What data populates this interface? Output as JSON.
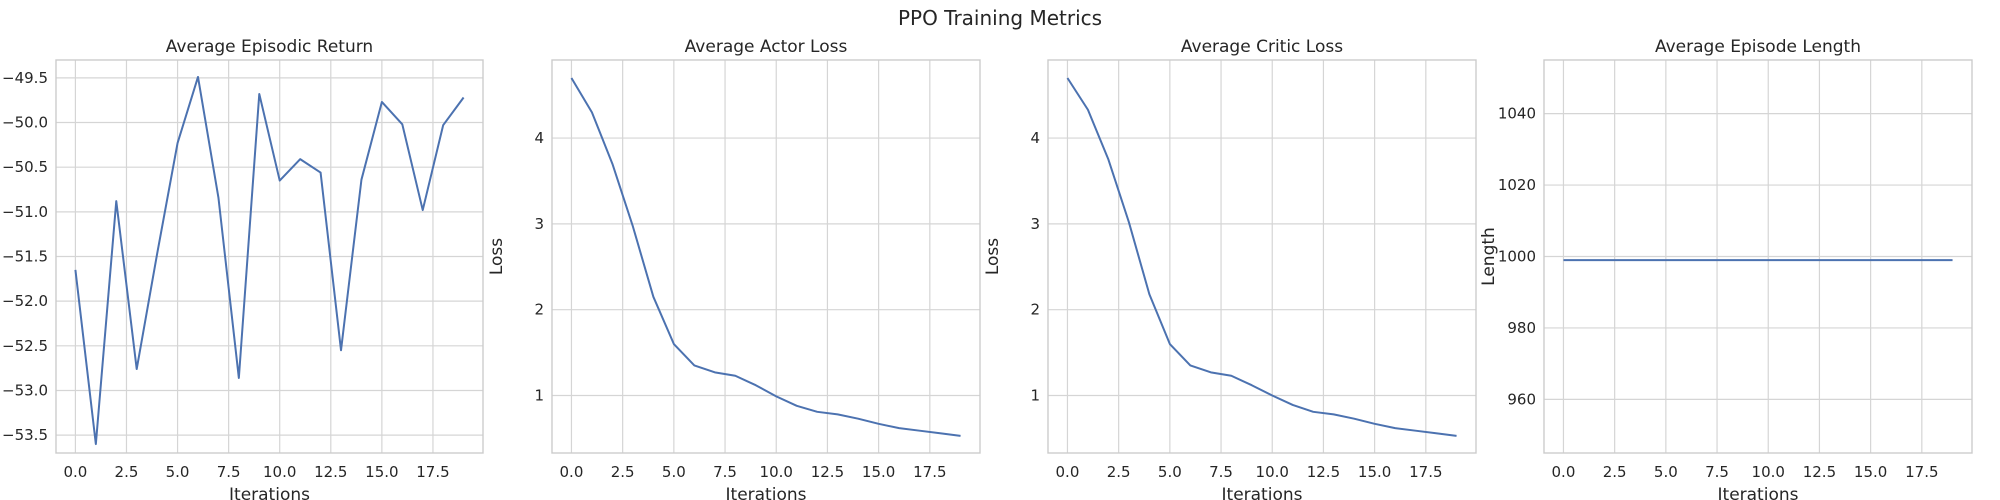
{
  "figure": {
    "title": "PPO Training Metrics"
  },
  "style": {
    "line_color": "#4c72b0",
    "grid_color": "#d5d5d5",
    "frame_color": "#cccccc",
    "text_color": "#262626"
  },
  "chart_data": [
    {
      "type": "line",
      "title": "Average Episodic Return",
      "xlabel": "Iterations",
      "ylabel": "",
      "xlim": [
        -0.95,
        19.95
      ],
      "ylim": [
        -53.7,
        -49.3
      ],
      "xticks": [
        0.0,
        2.5,
        5.0,
        7.5,
        10.0,
        12.5,
        15.0,
        17.5
      ],
      "xtick_labels": [
        "0.0",
        "2.5",
        "5.0",
        "7.5",
        "10.0",
        "12.5",
        "15.0",
        "17.5"
      ],
      "yticks": [
        -53.5,
        -53.0,
        -52.5,
        -52.0,
        -51.5,
        -51.0,
        -50.5,
        -50.0,
        -49.5
      ],
      "ytick_labels": [
        "−53.5",
        "−53.0",
        "−52.5",
        "−52.0",
        "−51.5",
        "−51.0",
        "−50.5",
        "−50.0",
        "−49.5"
      ],
      "x": [
        0,
        1,
        2,
        3,
        4,
        5,
        6,
        7,
        8,
        9,
        10,
        11,
        12,
        13,
        14,
        15,
        16,
        17,
        18,
        19
      ],
      "y": [
        -51.65,
        -53.6,
        -50.88,
        -52.76,
        -51.47,
        -50.23,
        -49.49,
        -50.84,
        -52.86,
        -49.68,
        -50.65,
        -50.41,
        -50.56,
        -52.55,
        -50.64,
        -49.77,
        -50.02,
        -50.98,
        -50.03,
        -49.72
      ],
      "grid": true
    },
    {
      "type": "line",
      "title": "Average Actor Loss",
      "xlabel": "Iterations",
      "ylabel": "Loss",
      "xlim": [
        -0.95,
        19.95
      ],
      "ylim": [
        0.33,
        4.91
      ],
      "xticks": [
        0.0,
        2.5,
        5.0,
        7.5,
        10.0,
        12.5,
        15.0,
        17.5
      ],
      "xtick_labels": [
        "0.0",
        "2.5",
        "5.0",
        "7.5",
        "10.0",
        "12.5",
        "15.0",
        "17.5"
      ],
      "yticks": [
        1,
        2,
        3,
        4
      ],
      "ytick_labels": [
        "1",
        "2",
        "3",
        "4"
      ],
      "x": [
        0,
        1,
        2,
        3,
        4,
        5,
        6,
        7,
        8,
        9,
        10,
        11,
        12,
        13,
        14,
        15,
        16,
        17,
        18,
        19
      ],
      "y": [
        4.7,
        4.3,
        3.7,
        2.97,
        2.15,
        1.6,
        1.35,
        1.27,
        1.23,
        1.12,
        0.99,
        0.88,
        0.81,
        0.78,
        0.73,
        0.67,
        0.62,
        0.59,
        0.56,
        0.53
      ],
      "grid": true
    },
    {
      "type": "line",
      "title": "Average Critic Loss",
      "xlabel": "Iterations",
      "ylabel": "Loss",
      "xlim": [
        -0.95,
        19.95
      ],
      "ylim": [
        0.33,
        4.91
      ],
      "xticks": [
        0.0,
        2.5,
        5.0,
        7.5,
        10.0,
        12.5,
        15.0,
        17.5
      ],
      "xtick_labels": [
        "0.0",
        "2.5",
        "5.0",
        "7.5",
        "10.0",
        "12.5",
        "15.0",
        "17.5"
      ],
      "yticks": [
        1,
        2,
        3,
        4
      ],
      "ytick_labels": [
        "1",
        "2",
        "3",
        "4"
      ],
      "x": [
        0,
        1,
        2,
        3,
        4,
        5,
        6,
        7,
        8,
        9,
        10,
        11,
        12,
        13,
        14,
        15,
        16,
        17,
        18,
        19
      ],
      "y": [
        4.7,
        4.33,
        3.75,
        3.02,
        2.18,
        1.6,
        1.35,
        1.27,
        1.23,
        1.12,
        1.0,
        0.89,
        0.81,
        0.78,
        0.73,
        0.67,
        0.62,
        0.59,
        0.56,
        0.53
      ],
      "grid": true
    },
    {
      "type": "line",
      "title": "Average Episode Length",
      "xlabel": "Iterations",
      "ylabel": "Length",
      "xlim": [
        -0.95,
        19.95
      ],
      "ylim": [
        945,
        1055
      ],
      "xticks": [
        0.0,
        2.5,
        5.0,
        7.5,
        10.0,
        12.5,
        15.0,
        17.5
      ],
      "xtick_labels": [
        "0.0",
        "2.5",
        "5.0",
        "7.5",
        "10.0",
        "12.5",
        "15.0",
        "17.5"
      ],
      "yticks": [
        960,
        980,
        1000,
        1020,
        1040
      ],
      "ytick_labels": [
        "960",
        "980",
        "1000",
        "1020",
        "1040"
      ],
      "x": [
        0,
        1,
        2,
        3,
        4,
        5,
        6,
        7,
        8,
        9,
        10,
        11,
        12,
        13,
        14,
        15,
        16,
        17,
        18,
        19
      ],
      "y": [
        999,
        999,
        999,
        999,
        999,
        999,
        999,
        999,
        999,
        999,
        999,
        999,
        999,
        999,
        999,
        999,
        999,
        999,
        999,
        999
      ],
      "grid": true
    }
  ]
}
